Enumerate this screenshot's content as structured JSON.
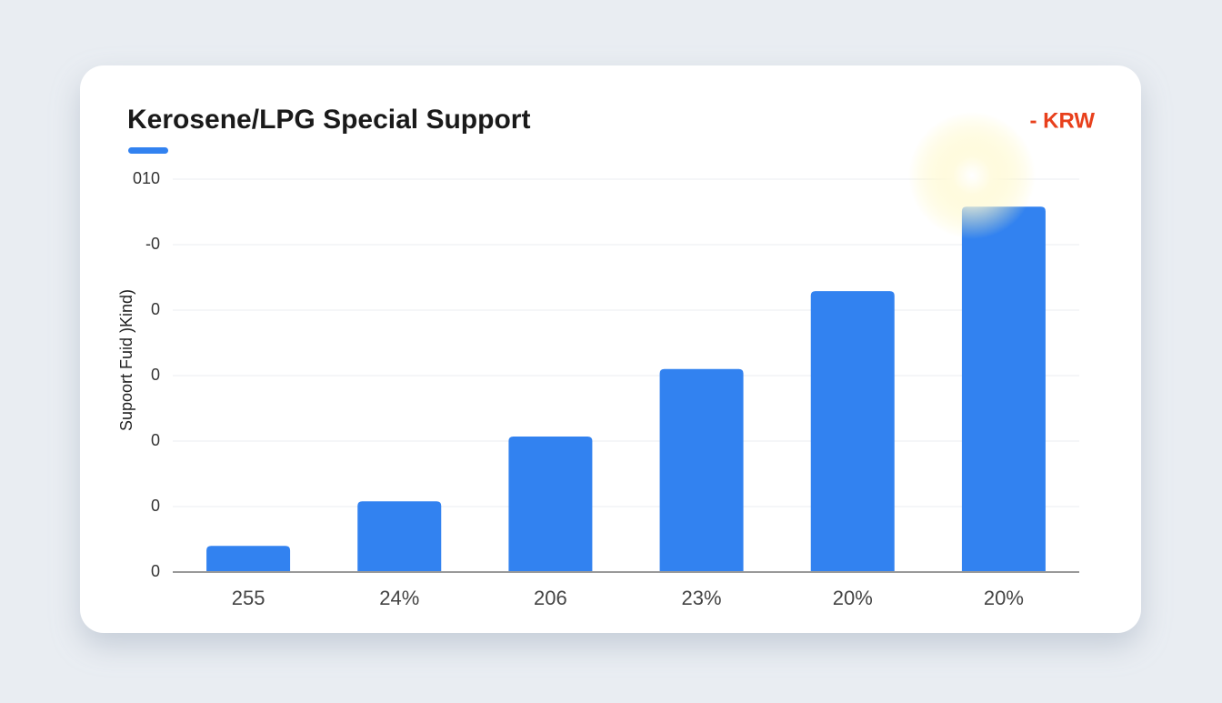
{
  "chart_data": {
    "type": "bar",
    "title": "Kerosene/LPG Special Support",
    "unit_label": "- KRW",
    "y_label": "Supoort Fuid )Kind)",
    "categories": [
      "255",
      "24%",
      "206",
      "23%",
      "20%",
      "20%"
    ],
    "values": [
      0.4,
      1.08,
      2.07,
      3.1,
      4.29,
      5.58
    ],
    "color": "#3282f0",
    "ylim": [
      0,
      6
    ],
    "yticks": [
      0,
      {
        "value": 1,
        "label": "0"
      },
      {
        "value": 2,
        "label": "0"
      },
      {
        "value": 3,
        "label": "0"
      },
      {
        "value": 4,
        "label": "0"
      },
      {
        "value": 5,
        "label": "-0"
      },
      {
        "value": 6,
        "label": "010"
      }
    ],
    "grid": true
  }
}
